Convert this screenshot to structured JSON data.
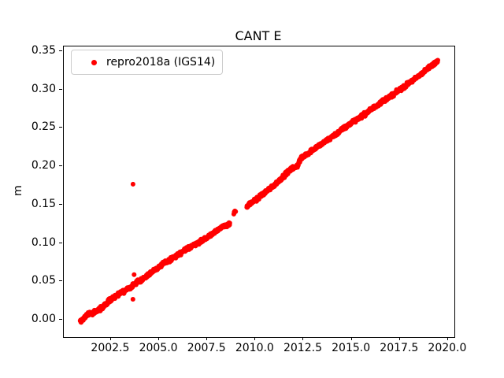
{
  "chart_data": {
    "type": "scatter",
    "title": "CANT E",
    "xlabel": "",
    "ylabel": "m",
    "xlim": [
      2000.05,
      2020.33
    ],
    "ylim": [
      -0.0225,
      0.356
    ],
    "grid": false,
    "legend_position": "upper-left",
    "xticks": {
      "values": [
        2002.5,
        2005.0,
        2007.5,
        2010.0,
        2012.5,
        2015.0,
        2017.5,
        2020.0
      ],
      "labels": [
        "2002.5",
        "2005.0",
        "2007.5",
        "2010.0",
        "2012.5",
        "2015.0",
        "2017.5",
        "2020.0"
      ]
    },
    "yticks": {
      "values": [
        0.0,
        0.05,
        0.1,
        0.15,
        0.2,
        0.25,
        0.3,
        0.35
      ],
      "labels": [
        "0.00",
        "0.05",
        "0.10",
        "0.15",
        "0.20",
        "0.25",
        "0.30",
        "0.35"
      ]
    },
    "legend": {
      "label": "repro2018a (IGS14)",
      "marker": "dot"
    },
    "colors": {
      "series": "#ff0000",
      "axes": "#000000",
      "legend_border": "#cccccc"
    },
    "series": [
      {
        "name": "repro2018a (IGS14)",
        "color": "#ff0000",
        "marker_radius_px": 3,
        "sample_step_years": 0.012,
        "scatter_spread_m": 0.0035,
        "segments": [
          [
            [
              2000.9,
              -0.003
            ],
            [
              2001.0,
              -0.001
            ],
            [
              2001.15,
              0.004
            ],
            [
              2001.35,
              0.008
            ],
            [
              2001.55,
              0.009
            ],
            [
              2001.8,
              0.012
            ],
            [
              2002.0,
              0.015
            ],
            [
              2002.25,
              0.021
            ],
            [
              2002.5,
              0.027
            ],
            [
              2002.75,
              0.031
            ],
            [
              2003.0,
              0.035
            ],
            [
              2003.25,
              0.038
            ],
            [
              2003.5,
              0.042
            ],
            [
              2003.75,
              0.047
            ],
            [
              2004.0,
              0.051
            ],
            [
              2004.25,
              0.055
            ],
            [
              2004.5,
              0.06
            ],
            [
              2004.75,
              0.065
            ],
            [
              2005.0,
              0.069
            ],
            [
              2005.25,
              0.073
            ],
            [
              2005.5,
              0.077
            ],
            [
              2005.75,
              0.081
            ],
            [
              2006.0,
              0.085
            ],
            [
              2006.25,
              0.089
            ],
            [
              2006.5,
              0.093
            ],
            [
              2006.75,
              0.097
            ],
            [
              2007.0,
              0.1
            ],
            [
              2007.25,
              0.104
            ],
            [
              2007.5,
              0.107
            ],
            [
              2007.75,
              0.112
            ],
            [
              2008.0,
              0.117
            ],
            [
              2008.25,
              0.12
            ],
            [
              2008.5,
              0.123
            ],
            [
              2008.67,
              0.126
            ]
          ],
          [
            [
              2008.88,
              0.139
            ],
            [
              2008.97,
              0.141
            ]
          ],
          [
            [
              2009.55,
              0.147
            ],
            [
              2009.75,
              0.151
            ],
            [
              2010.0,
              0.156
            ],
            [
              2010.25,
              0.161
            ],
            [
              2010.5,
              0.166
            ],
            [
              2010.75,
              0.171
            ],
            [
              2011.0,
              0.176
            ],
            [
              2011.25,
              0.182
            ],
            [
              2011.5,
              0.188
            ],
            [
              2011.7,
              0.193
            ],
            [
              2011.9,
              0.197
            ],
            [
              2012.1,
              0.199
            ],
            [
              2012.2,
              0.201
            ],
            [
              2012.28,
              0.207
            ],
            [
              2012.5,
              0.213
            ],
            [
              2012.75,
              0.217
            ],
            [
              2013.0,
              0.222
            ],
            [
              2013.25,
              0.226
            ],
            [
              2013.5,
              0.23
            ],
            [
              2013.75,
              0.234
            ],
            [
              2014.0,
              0.239
            ],
            [
              2014.25,
              0.243
            ],
            [
              2014.5,
              0.248
            ],
            [
              2014.75,
              0.252
            ],
            [
              2015.0,
              0.257
            ],
            [
              2015.25,
              0.261
            ],
            [
              2015.5,
              0.265
            ],
            [
              2015.75,
              0.269
            ],
            [
              2016.0,
              0.274
            ],
            [
              2016.25,
              0.278
            ],
            [
              2016.5,
              0.283
            ],
            [
              2016.75,
              0.287
            ],
            [
              2017.0,
              0.291
            ],
            [
              2017.25,
              0.295
            ],
            [
              2017.5,
              0.3
            ],
            [
              2017.75,
              0.304
            ],
            [
              2018.0,
              0.309
            ],
            [
              2018.25,
              0.313
            ],
            [
              2018.5,
              0.318
            ],
            [
              2018.75,
              0.323
            ],
            [
              2019.0,
              0.328
            ],
            [
              2019.2,
              0.332
            ],
            [
              2019.35,
              0.335
            ],
            [
              2019.47,
              0.338
            ]
          ]
        ],
        "outliers": [
          [
            2003.645,
            0.1766
          ],
          [
            2003.7,
            0.0588
          ],
          [
            2003.64,
            0.0267
          ]
        ]
      }
    ]
  }
}
